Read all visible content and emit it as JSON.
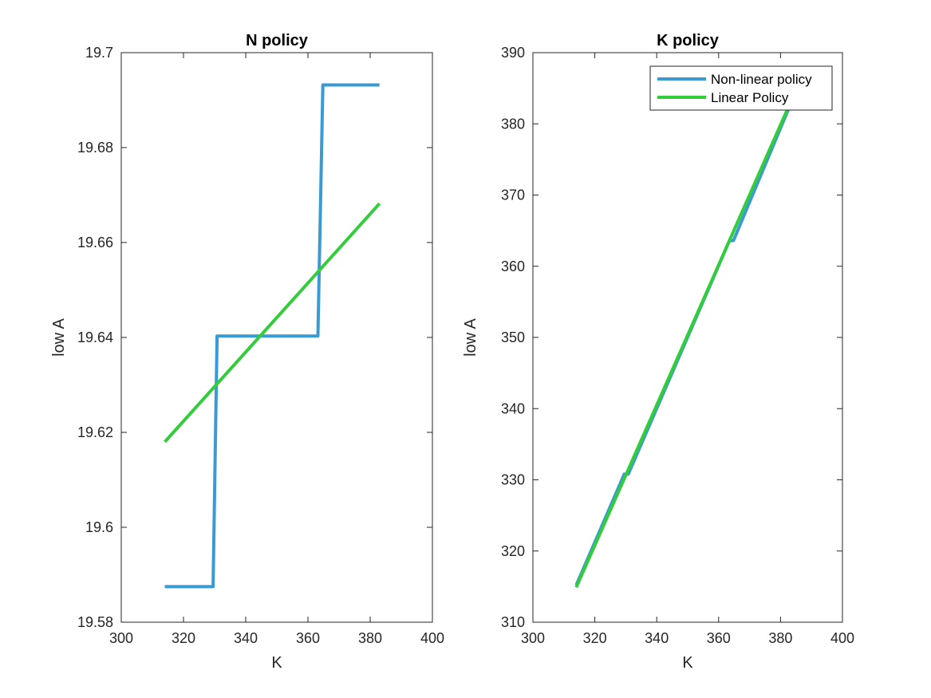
{
  "colors": {
    "nonlinear": "#3a9ad4",
    "linear": "#33cc3a",
    "axis": "#262626"
  },
  "chart_data": [
    {
      "type": "line",
      "title": "N policy",
      "xlabel": "K",
      "ylabel": "low A",
      "xlim": [
        300,
        400
      ],
      "ylim": [
        19.58,
        19.7
      ],
      "xticks": [
        300,
        320,
        340,
        360,
        380,
        400
      ],
      "yticks": [
        19.58,
        19.6,
        19.62,
        19.64,
        19.66,
        19.68,
        19.7
      ],
      "xtick_labels": [
        "300",
        "320",
        "340",
        "360",
        "380",
        "400"
      ],
      "ytick_labels": [
        "19.58",
        "19.6",
        "19.62",
        "19.64",
        "19.66",
        "19.68",
        "19.7"
      ],
      "grid": false,
      "legend": null,
      "series": [
        {
          "key": "nonlinear",
          "x": [
            314,
            329.5,
            330.8,
            363.2,
            364.8,
            383
          ],
          "y": [
            19.5875,
            19.5875,
            19.6403,
            19.6403,
            19.6932,
            19.6932
          ]
        },
        {
          "key": "linear",
          "x": [
            314,
            383
          ],
          "y": [
            19.618,
            19.6682
          ]
        }
      ]
    },
    {
      "type": "line",
      "title": "K policy",
      "xlabel": "K",
      "ylabel": "low A",
      "xlim": [
        300,
        400
      ],
      "ylim": [
        310,
        390
      ],
      "xticks": [
        300,
        320,
        340,
        360,
        380,
        400
      ],
      "yticks": [
        310,
        320,
        330,
        340,
        350,
        360,
        370,
        380,
        390
      ],
      "xtick_labels": [
        "300",
        "320",
        "340",
        "360",
        "380",
        "400"
      ],
      "ytick_labels": [
        "310",
        "320",
        "330",
        "340",
        "350",
        "360",
        "370",
        "380",
        "390"
      ],
      "grid": false,
      "legend": "top-right",
      "series": [
        {
          "key": "nonlinear",
          "name": "Non-linear policy",
          "x": [
            314,
            329.5,
            330.8,
            363.5,
            364.8,
            383
          ],
          "y": [
            315.2,
            330.8,
            330.8,
            363.6,
            363.6,
            382.5
          ]
        },
        {
          "key": "linear",
          "name": "Linear Policy",
          "x": [
            314,
            383
          ],
          "y": [
            314.9,
            382.8
          ]
        }
      ]
    }
  ]
}
